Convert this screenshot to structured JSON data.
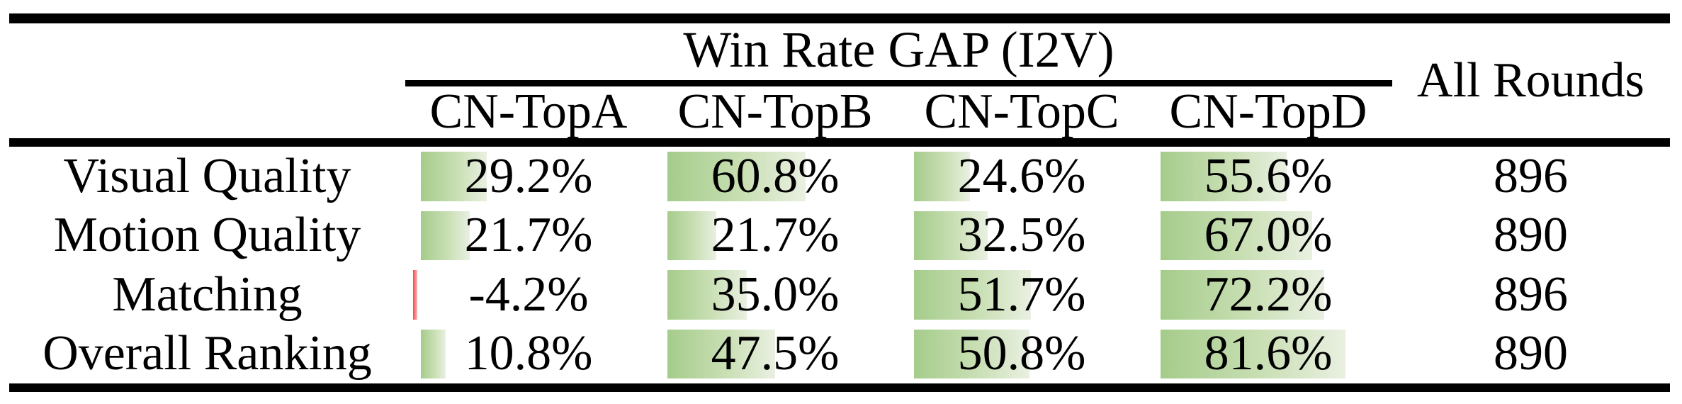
{
  "table": {
    "group_header": "Win Rate GAP (I2V)",
    "all_rounds_header": "All Rounds",
    "columns": [
      "CN-TopA",
      "CN-TopB",
      "CN-TopC",
      "CN-TopD"
    ],
    "rows": [
      {
        "label": "Visual Quality",
        "cells": [
          {
            "value": 29.2,
            "text": "29.2%"
          },
          {
            "value": 60.8,
            "text": "60.8%"
          },
          {
            "value": 24.6,
            "text": "24.6%"
          },
          {
            "value": 55.6,
            "text": "55.6%"
          }
        ],
        "all_rounds": "896"
      },
      {
        "label": "Motion Quality",
        "cells": [
          {
            "value": 21.7,
            "text": "21.7%"
          },
          {
            "value": 21.7,
            "text": "21.7%"
          },
          {
            "value": 32.5,
            "text": "32.5%"
          },
          {
            "value": 67.0,
            "text": "67.0%"
          }
        ],
        "all_rounds": "890"
      },
      {
        "label": "Matching",
        "cells": [
          {
            "value": -4.2,
            "text": "-4.2%"
          },
          {
            "value": 35.0,
            "text": "35.0%"
          },
          {
            "value": 51.7,
            "text": "51.7%"
          },
          {
            "value": 72.2,
            "text": "72.2%"
          }
        ],
        "all_rounds": "896"
      },
      {
        "label": "Overall Ranking",
        "cells": [
          {
            "value": 10.8,
            "text": "10.8%"
          },
          {
            "value": 47.5,
            "text": "47.5%"
          },
          {
            "value": 50.8,
            "text": "50.8%"
          },
          {
            "value": 81.6,
            "text": "81.6%"
          }
        ],
        "all_rounds": "890"
      }
    ],
    "colors": {
      "positive_bar_start": "#a5cc8b",
      "positive_bar_end": "#e9f0e1",
      "negative_bar_start": "#f8474d",
      "negative_bar_end": "#fdbcbc",
      "rule": "#000000",
      "text": "#000000",
      "background": "#ffffff"
    }
  },
  "chart_data": {
    "type": "table",
    "title": "Win Rate GAP (I2V)",
    "columns": [
      "CN-TopA",
      "CN-TopB",
      "CN-TopC",
      "CN-TopD",
      "All Rounds"
    ],
    "row_labels": [
      "Visual Quality",
      "Motion Quality",
      "Matching",
      "Overall Ranking"
    ],
    "series": [
      {
        "name": "Visual Quality",
        "values": [
          29.2,
          60.8,
          24.6,
          55.6
        ],
        "all_rounds": 896
      },
      {
        "name": "Motion Quality",
        "values": [
          21.7,
          21.7,
          32.5,
          67.0
        ],
        "all_rounds": 890
      },
      {
        "name": "Matching",
        "values": [
          -4.2,
          35.0,
          51.7,
          72.2
        ],
        "all_rounds": 896
      },
      {
        "name": "Overall Ranking",
        "values": [
          10.8,
          47.5,
          50.8,
          81.6
        ],
        "all_rounds": 890
      }
    ],
    "value_unit": "%",
    "bar_scale_range": [
      0,
      100
    ],
    "layout_hints": "in-cell gradient data bars anchored left; negative value drawn as thin red bar"
  }
}
